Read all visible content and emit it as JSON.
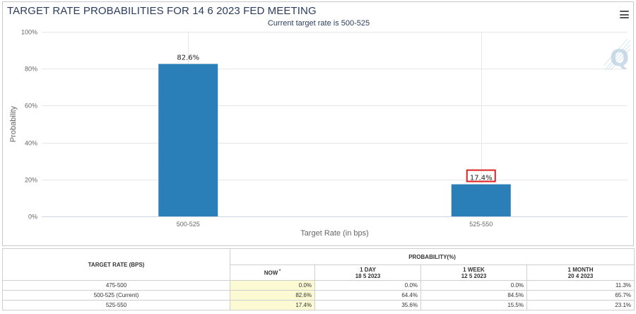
{
  "chart": {
    "title": "TARGET RATE PROBABILITIES FOR 14 6 2023 FED MEETING",
    "subtitle": "Current target rate is 500-525",
    "watermark_icon": "cme-q-logo-icon",
    "menu_icon": "hamburger-menu-icon"
  },
  "chart_data": {
    "type": "bar",
    "categories": [
      "500-525",
      "525-550"
    ],
    "values": [
      82.6,
      17.4
    ],
    "data_labels": [
      "82.6%",
      "17.4%"
    ],
    "highlighted_label_index": 1,
    "xlabel": "Target Rate (in bps)",
    "ylabel": "Probability",
    "ylim": [
      0,
      100
    ],
    "yticks": [
      "0%",
      "20%",
      "40%",
      "60%",
      "80%",
      "100%"
    ],
    "ytick_values": [
      0,
      20,
      40,
      60,
      80,
      100
    ],
    "grid": true,
    "bar_color": "#2a7fb8",
    "highlight_color": "#e02020"
  },
  "table": {
    "header_target": "TARGET RATE (BPS)",
    "header_probability": "PROBABILITY(%)",
    "columns": [
      {
        "label": "NOW",
        "marker": "*",
        "date": ""
      },
      {
        "label": "1 DAY",
        "marker": "",
        "date": "18 5 2023"
      },
      {
        "label": "1 WEEK",
        "marker": "",
        "date": "12 5 2023"
      },
      {
        "label": "1 MONTH",
        "marker": "",
        "date": "20 4 2023"
      }
    ],
    "rows": [
      {
        "rate": "475-500",
        "values": [
          "0.0%",
          "0.0%",
          "0.0%",
          "11.3%"
        ]
      },
      {
        "rate": "500-525 (Current)",
        "values": [
          "82.6%",
          "64.4%",
          "84.5%",
          "65.7%"
        ]
      },
      {
        "rate": "525-550",
        "values": [
          "17.4%",
          "35.6%",
          "15.5%",
          "23.1%"
        ]
      }
    ]
  }
}
